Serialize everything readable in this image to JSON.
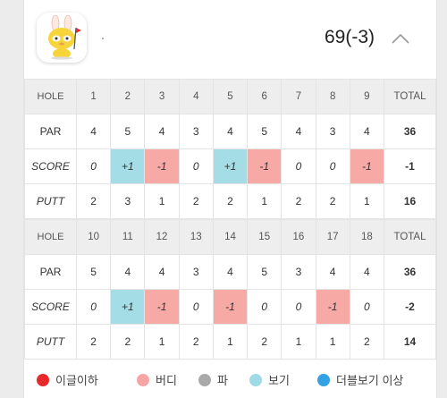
{
  "header": {
    "total_score": "69(-3)",
    "avatar_icon": "rabbit-golfer-avatar-icon",
    "collapse_icon": "chevron-up-icon"
  },
  "front_nine": {
    "hole_label": "HOLE",
    "holes": [
      "1",
      "2",
      "3",
      "4",
      "5",
      "6",
      "7",
      "8",
      "9"
    ],
    "total_label": "TOTAL",
    "par_label": "PAR",
    "par": [
      "4",
      "5",
      "4",
      "3",
      "4",
      "5",
      "4",
      "3",
      "4"
    ],
    "par_total": "36",
    "score_label": "SCORE",
    "score": [
      "0",
      "+1",
      "-1",
      "0",
      "+1",
      "-1",
      "0",
      "0",
      "-1"
    ],
    "score_total": "-1",
    "putt_label": "PUTT",
    "putt": [
      "2",
      "3",
      "1",
      "2",
      "2",
      "1",
      "2",
      "2",
      "1"
    ],
    "putt_total": "16"
  },
  "back_nine": {
    "hole_label": "HOLE",
    "holes": [
      "10",
      "11",
      "12",
      "13",
      "14",
      "15",
      "16",
      "17",
      "18"
    ],
    "total_label": "TOTAL",
    "par_label": "PAR",
    "par": [
      "5",
      "4",
      "4",
      "3",
      "4",
      "5",
      "3",
      "4",
      "4"
    ],
    "par_total": "36",
    "score_label": "SCORE",
    "score": [
      "0",
      "+1",
      "-1",
      "0",
      "-1",
      "0",
      "0",
      "-1",
      "0"
    ],
    "score_total": "-2",
    "putt_label": "PUTT",
    "putt": [
      "2",
      "2",
      "1",
      "2",
      "1",
      "2",
      "1",
      "1",
      "2"
    ],
    "putt_total": "14"
  },
  "legend": [
    {
      "label": "이글이하",
      "color": "#e8292c"
    },
    {
      "label": "버디",
      "color": "#f5a5a3"
    },
    {
      "label": "파",
      "color": "#a9a9a9"
    },
    {
      "label": "보기",
      "color": "#9fdae6"
    },
    {
      "label": "더블보기 이상",
      "color": "#33a1e3"
    }
  ],
  "colors": {
    "bogey_cell": "#a5dde7",
    "birdie_cell": "#f7a9a6",
    "header_row": "#eeeeee"
  }
}
